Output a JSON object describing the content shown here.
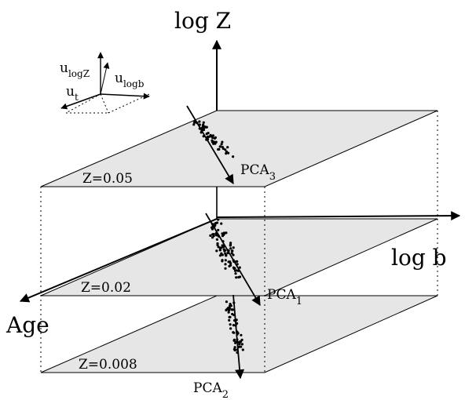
{
  "axes": {
    "vertical": "log Z",
    "horizontal": "log b",
    "depth": "Age"
  },
  "planes": [
    {
      "label": "Z=0.05",
      "pca_label": "PCA",
      "pca_sub": "3"
    },
    {
      "label": "Z=0.02",
      "pca_label": "PCA",
      "pca_sub": "1"
    },
    {
      "label": "Z=0.008",
      "pca_label": "PCA",
      "pca_sub": "2"
    }
  ],
  "unit_vectors": {
    "u_logZ": {
      "base": "u",
      "sub": "logZ"
    },
    "u_logb": {
      "base": "u",
      "sub": "logb"
    },
    "u_t": {
      "base": "u",
      "sub": "t"
    }
  },
  "colors": {
    "plane_fill": "#e6e6e6",
    "ink": "#000000"
  }
}
